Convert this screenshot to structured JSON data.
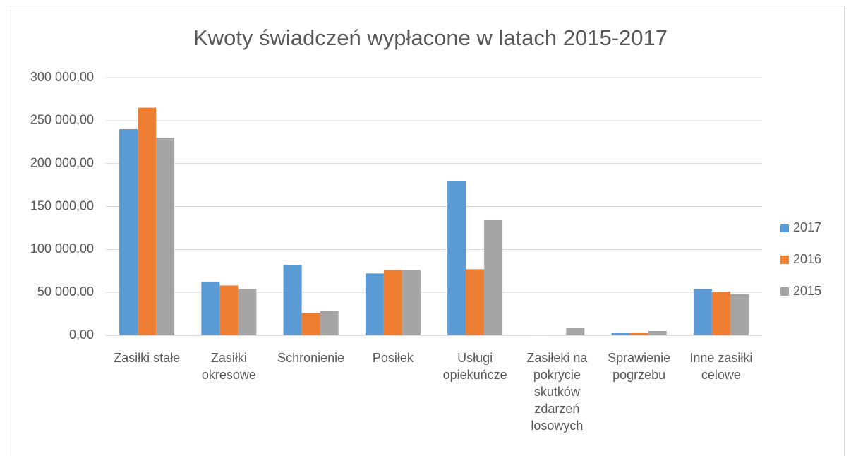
{
  "chart_data": {
    "type": "bar",
    "title": "Kwoty świadczeń wypłacone w latach 2015-2017",
    "categories": [
      "Zasiłki stałe",
      "Zasiłki okresowe",
      "Schronienie",
      "Posiłek",
      "Usługi opiekuńcze",
      "Zasiłeki na pokrycie skutków zdarzeń losowych",
      "Sprawienie pogrzebu",
      "Inne zasiłki celowe"
    ],
    "series": [
      {
        "name": "2017",
        "color": "#5b9bd5",
        "values": [
          240000,
          62000,
          82000,
          72000,
          180000,
          500,
          2500,
          54000
        ]
      },
      {
        "name": "2016",
        "color": "#ed7d31",
        "values": [
          265000,
          58000,
          26000,
          76000,
          77000,
          0,
          2500,
          51000
        ]
      },
      {
        "name": "2015",
        "color": "#a5a5a5",
        "values": [
          230000,
          54000,
          28000,
          76000,
          134000,
          9000,
          5000,
          48000
        ]
      }
    ],
    "ylim": [
      0,
      300000
    ],
    "yticks": [
      {
        "value": 0,
        "label": "0,00"
      },
      {
        "value": 50000,
        "label": "50 000,00"
      },
      {
        "value": 100000,
        "label": "100 000,00"
      },
      {
        "value": 150000,
        "label": "150 000,00"
      },
      {
        "value": 200000,
        "label": "200 000,00"
      },
      {
        "value": 250000,
        "label": "250 000,00"
      },
      {
        "value": 300000,
        "label": "300 000,00"
      }
    ],
    "grid": true,
    "legend": "right"
  }
}
